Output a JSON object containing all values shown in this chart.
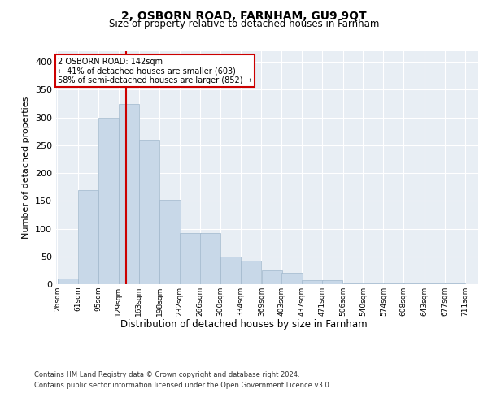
{
  "title": "2, OSBORN ROAD, FARNHAM, GU9 9QT",
  "subtitle": "Size of property relative to detached houses in Farnham",
  "xlabel": "Distribution of detached houses by size in Farnham",
  "ylabel": "Number of detached properties",
  "bar_heights": [
    10,
    170,
    300,
    325,
    258,
    152,
    92,
    92,
    50,
    42,
    25,
    20,
    8,
    8,
    2,
    2,
    2,
    2,
    2,
    2
  ],
  "bin_edges": [
    26,
    61,
    95,
    129,
    163,
    198,
    232,
    266,
    300,
    334,
    369,
    403,
    437,
    471,
    506,
    540,
    574,
    608,
    643,
    677,
    711
  ],
  "tick_labels": [
    "26sqm",
    "61sqm",
    "95sqm",
    "129sqm",
    "163sqm",
    "198sqm",
    "232sqm",
    "266sqm",
    "300sqm",
    "334sqm",
    "369sqm",
    "403sqm",
    "437sqm",
    "471sqm",
    "506sqm",
    "540sqm",
    "574sqm",
    "608sqm",
    "643sqm",
    "677sqm",
    "711sqm"
  ],
  "bar_color": "#c8d8e8",
  "bar_edge_color": "#a0b8cc",
  "red_line_x": 142,
  "annotation_title": "2 OSBORN ROAD: 142sqm",
  "annotation_line1": "← 41% of detached houses are smaller (603)",
  "annotation_line2": "58% of semi-detached houses are larger (852) →",
  "annotation_box_color": "#cc0000",
  "ylim": [
    0,
    420
  ],
  "yticks": [
    0,
    50,
    100,
    150,
    200,
    250,
    300,
    350,
    400
  ],
  "background_color": "#e8eef4",
  "footer_line1": "Contains HM Land Registry data © Crown copyright and database right 2024.",
  "footer_line2": "Contains public sector information licensed under the Open Government Licence v3.0."
}
